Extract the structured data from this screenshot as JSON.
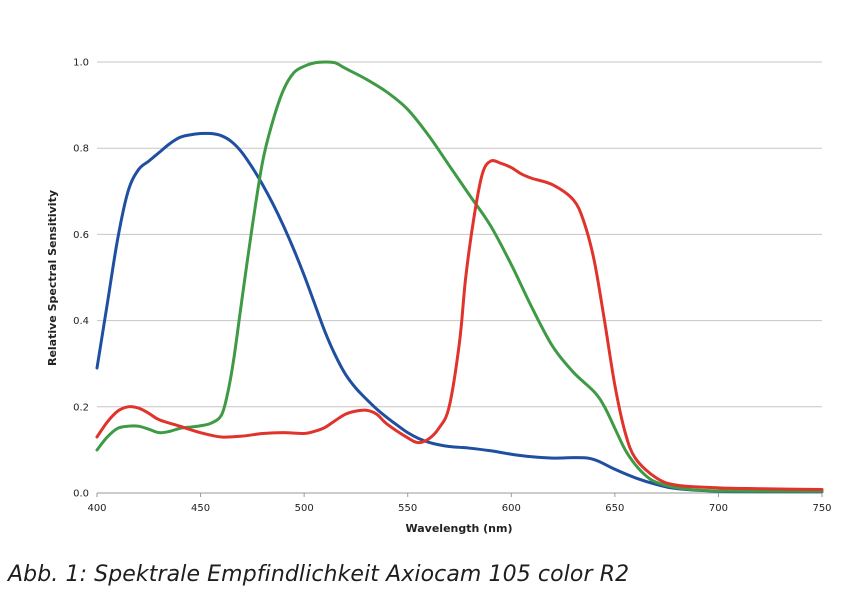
{
  "caption": "Abb.  1: Spektrale Empfindlichkeit Axiocam 105 color R2",
  "chart_data": {
    "type": "line",
    "title": "",
    "xlabel": "Wavelength (nm)",
    "ylabel": "Relative Spectral Sensitivity",
    "xlim": [
      400,
      750
    ],
    "ylim": [
      0.0,
      1.0
    ],
    "xticks": [
      400,
      450,
      500,
      550,
      600,
      650,
      700,
      750
    ],
    "xtick_labels": [
      "400",
      "450",
      "500",
      "550",
      "600",
      "650",
      "700",
      "750"
    ],
    "yticks": [
      0.0,
      0.2,
      0.4,
      0.6,
      0.8,
      1.0
    ],
    "ytick_labels": [
      "0.0",
      "0.2",
      "0.4",
      "0.6",
      "0.8",
      "1.0"
    ],
    "grid": "horizontal",
    "series": [
      {
        "color": "#1f4fa0",
        "x": [
          400,
          405,
          410,
          415,
          420,
          425,
          430,
          435,
          440,
          445,
          450,
          455,
          460,
          465,
          470,
          475,
          480,
          485,
          490,
          495,
          500,
          505,
          510,
          515,
          520,
          525,
          530,
          535,
          540,
          545,
          550,
          555,
          560,
          565,
          570,
          575,
          580,
          590,
          600,
          610,
          620,
          630,
          637,
          642,
          650,
          660,
          670,
          680,
          700,
          720,
          750
        ],
        "y": [
          0.29,
          0.44,
          0.59,
          0.7,
          0.75,
          0.77,
          0.79,
          0.81,
          0.825,
          0.831,
          0.834,
          0.834,
          0.829,
          0.815,
          0.79,
          0.755,
          0.715,
          0.67,
          0.62,
          0.565,
          0.505,
          0.44,
          0.375,
          0.32,
          0.275,
          0.243,
          0.218,
          0.195,
          0.175,
          0.157,
          0.14,
          0.127,
          0.118,
          0.112,
          0.108,
          0.106,
          0.104,
          0.098,
          0.09,
          0.084,
          0.081,
          0.082,
          0.081,
          0.074,
          0.055,
          0.035,
          0.02,
          0.01,
          0.004,
          0.003,
          0.003
        ]
      },
      {
        "color": "#3f9a45",
        "x": [
          400,
          405,
          410,
          415,
          420,
          425,
          430,
          435,
          440,
          445,
          450,
          455,
          460,
          463,
          466,
          470,
          475,
          480,
          485,
          490,
          495,
          500,
          505,
          510,
          515,
          520,
          530,
          540,
          550,
          560,
          570,
          580,
          590,
          600,
          610,
          620,
          630,
          640,
          645,
          650,
          655,
          660,
          665,
          670,
          680,
          700,
          750
        ],
        "y": [
          0.1,
          0.13,
          0.15,
          0.155,
          0.155,
          0.148,
          0.14,
          0.143,
          0.15,
          0.153,
          0.156,
          0.162,
          0.18,
          0.23,
          0.31,
          0.45,
          0.62,
          0.77,
          0.865,
          0.935,
          0.975,
          0.99,
          0.998,
          1.0,
          0.998,
          0.985,
          0.96,
          0.93,
          0.89,
          0.83,
          0.76,
          0.69,
          0.62,
          0.53,
          0.43,
          0.34,
          0.28,
          0.235,
          0.2,
          0.15,
          0.1,
          0.065,
          0.04,
          0.025,
          0.012,
          0.005,
          0.004
        ]
      },
      {
        "color": "#e0332b",
        "x": [
          400,
          405,
          410,
          415,
          420,
          425,
          430,
          440,
          450,
          460,
          470,
          480,
          490,
          500,
          505,
          510,
          515,
          520,
          525,
          530,
          535,
          540,
          550,
          555,
          560,
          565,
          570,
          575,
          578,
          582,
          586,
          590,
          595,
          600,
          605,
          610,
          620,
          630,
          635,
          640,
          645,
          650,
          655,
          660,
          670,
          680,
          700,
          720,
          750
        ],
        "y": [
          0.13,
          0.165,
          0.19,
          0.2,
          0.197,
          0.185,
          0.17,
          0.155,
          0.14,
          0.13,
          0.132,
          0.138,
          0.14,
          0.138,
          0.143,
          0.152,
          0.168,
          0.183,
          0.19,
          0.192,
          0.183,
          0.16,
          0.128,
          0.117,
          0.125,
          0.15,
          0.2,
          0.35,
          0.5,
          0.64,
          0.74,
          0.77,
          0.765,
          0.755,
          0.74,
          0.73,
          0.715,
          0.68,
          0.63,
          0.54,
          0.4,
          0.25,
          0.14,
          0.08,
          0.035,
          0.018,
          0.012,
          0.01,
          0.008
        ]
      }
    ]
  }
}
